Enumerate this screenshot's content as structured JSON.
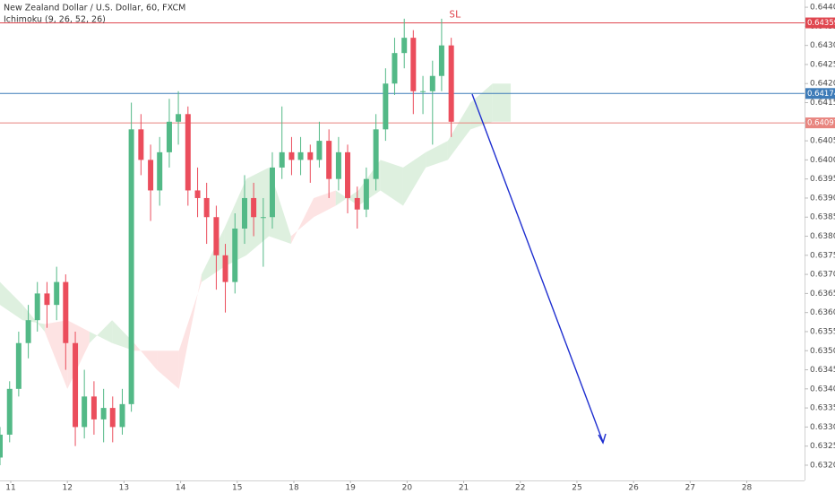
{
  "chart_data": {
    "type": "candlestick",
    "title": "New Zealand Dollar / U.S. Dollar, 60, FXCM",
    "subtitle": "Ichimoku (9, 26, 52, 26)",
    "xlim": [
      -0.19,
      14.02
    ],
    "ylim": [
      0.6316,
      0.64419
    ],
    "grid": false,
    "xticks": [
      {
        "value": 0,
        "label": "11"
      },
      {
        "value": 1,
        "label": "12"
      },
      {
        "value": 2,
        "label": "13"
      },
      {
        "value": 3,
        "label": "14"
      },
      {
        "value": 4,
        "label": "15"
      },
      {
        "value": 5,
        "label": "18"
      },
      {
        "value": 6,
        "label": "19"
      },
      {
        "value": 7,
        "label": "20"
      },
      {
        "value": 8,
        "label": "21"
      },
      {
        "value": 9,
        "label": "22"
      },
      {
        "value": 10,
        "label": "25"
      },
      {
        "value": 11,
        "label": "26"
      },
      {
        "value": 12,
        "label": "27"
      },
      {
        "value": 13,
        "label": "28"
      }
    ],
    "yticks": [
      {
        "value": 0.644,
        "label": "0.64400"
      },
      {
        "value": 0.6435,
        "label": "0.64350"
      },
      {
        "value": 0.643,
        "label": "0.64300"
      },
      {
        "value": 0.6425,
        "label": "0.64250"
      },
      {
        "value": 0.642,
        "label": "0.64200"
      },
      {
        "value": 0.6415,
        "label": "0.64150"
      },
      {
        "value": 0.641,
        "label": "0.64100"
      },
      {
        "value": 0.6405,
        "label": "0.64050"
      },
      {
        "value": 0.64,
        "label": "0.64000"
      },
      {
        "value": 0.6395,
        "label": "0.63950"
      },
      {
        "value": 0.639,
        "label": "0.63900"
      },
      {
        "value": 0.6385,
        "label": "0.63850"
      },
      {
        "value": 0.638,
        "label": "0.63800"
      },
      {
        "value": 0.6375,
        "label": "0.63750"
      },
      {
        "value": 0.637,
        "label": "0.63700"
      },
      {
        "value": 0.6365,
        "label": "0.63650"
      },
      {
        "value": 0.636,
        "label": "0.63600"
      },
      {
        "value": 0.6355,
        "label": "0.63550"
      },
      {
        "value": 0.635,
        "label": "0.63500"
      },
      {
        "value": 0.6345,
        "label": "0.63450"
      },
      {
        "value": 0.634,
        "label": "0.63400"
      },
      {
        "value": 0.6335,
        "label": "0.63350"
      },
      {
        "value": 0.633,
        "label": "0.63300"
      },
      {
        "value": 0.6325,
        "label": "0.63250"
      },
      {
        "value": 0.632,
        "label": "0.63200"
      }
    ],
    "up_color": "#53b987",
    "down_color": "#eb4d5c",
    "x": [
      -0.19,
      -0.02,
      0.14,
      0.31,
      0.47,
      0.64,
      0.81,
      0.97,
      1.14,
      1.3,
      1.47,
      1.64,
      1.8,
      1.97,
      2.13,
      2.3,
      2.47,
      2.63,
      2.8,
      2.96,
      3.13,
      3.3,
      3.46,
      3.63,
      3.79,
      3.96,
      4.13,
      4.29,
      4.46,
      4.62,
      4.79,
      4.96,
      5.12,
      5.29,
      5.45,
      5.62,
      5.79,
      5.95,
      6.12,
      6.28,
      6.45,
      6.62,
      6.78,
      6.95,
      7.11,
      7.28,
      7.45,
      7.61,
      7.78
    ],
    "open": [
      0.6322,
      0.6328,
      0.634,
      0.6352,
      0.6358,
      0.6365,
      0.6362,
      0.6368,
      0.6352,
      0.633,
      0.6338,
      0.6332,
      0.6335,
      0.633,
      0.6336,
      0.6408,
      0.64,
      0.6392,
      0.6402,
      0.641,
      0.6412,
      0.6392,
      0.639,
      0.6385,
      0.6375,
      0.6368,
      0.6382,
      0.639,
      0.6385,
      0.6385,
      0.6398,
      0.6402,
      0.64,
      0.6402,
      0.64,
      0.6405,
      0.6395,
      0.6402,
      0.639,
      0.6387,
      0.6395,
      0.6408,
      0.642,
      0.6428,
      0.6432,
      0.6418,
      0.6418,
      0.6422,
      0.643
    ],
    "high": [
      0.633,
      0.6342,
      0.6355,
      0.6362,
      0.6368,
      0.6368,
      0.6372,
      0.637,
      0.6355,
      0.6345,
      0.6342,
      0.634,
      0.6338,
      0.634,
      0.6415,
      0.6412,
      0.6404,
      0.6406,
      0.6416,
      0.6418,
      0.6414,
      0.6398,
      0.6394,
      0.6388,
      0.6378,
      0.6386,
      0.6396,
      0.6394,
      0.639,
      0.6402,
      0.6414,
      0.6406,
      0.6406,
      0.6404,
      0.641,
      0.6408,
      0.6406,
      0.6404,
      0.6393,
      0.6398,
      0.6412,
      0.6424,
      0.6432,
      0.6437,
      0.6434,
      0.6422,
      0.6426,
      0.6437,
      0.6432
    ],
    "low": [
      0.632,
      0.6326,
      0.6338,
      0.6348,
      0.6355,
      0.6356,
      0.6358,
      0.6345,
      0.6325,
      0.6327,
      0.6328,
      0.6326,
      0.6326,
      0.6328,
      0.6334,
      0.6396,
      0.6384,
      0.6388,
      0.6398,
      0.6404,
      0.6388,
      0.6385,
      0.6378,
      0.6366,
      0.636,
      0.6365,
      0.6378,
      0.638,
      0.6372,
      0.6382,
      0.6395,
      0.6396,
      0.6396,
      0.6394,
      0.6398,
      0.639,
      0.6392,
      0.6386,
      0.6382,
      0.6385,
      0.6392,
      0.6405,
      0.6417,
      0.6424,
      0.6412,
      0.6412,
      0.6404,
      0.6418,
      0.6406
    ],
    "close": [
      0.6328,
      0.634,
      0.6352,
      0.6358,
      0.6365,
      0.6362,
      0.6368,
      0.6352,
      0.633,
      0.6338,
      0.6332,
      0.6335,
      0.633,
      0.6336,
      0.6408,
      0.64,
      0.6392,
      0.6402,
      0.641,
      0.6412,
      0.6392,
      0.639,
      0.6385,
      0.6375,
      0.6368,
      0.6382,
      0.639,
      0.6385,
      0.6385,
      0.6398,
      0.6402,
      0.64,
      0.6402,
      0.64,
      0.6405,
      0.6395,
      0.6402,
      0.639,
      0.6387,
      0.6395,
      0.6408,
      0.642,
      0.6428,
      0.6432,
      0.6418,
      0.6418,
      0.6422,
      0.643,
      0.641
    ],
    "cloud": {
      "x": [
        -0.19,
        0.21,
        0.6,
        1.0,
        1.39,
        1.79,
        2.18,
        2.58,
        2.97,
        3.37,
        3.77,
        4.16,
        4.56,
        4.95,
        5.35,
        5.74,
        6.14,
        6.53,
        6.93,
        7.33,
        7.72,
        8.12,
        8.51,
        8.83
      ],
      "span_a": [
        0.6368,
        0.6362,
        0.6355,
        0.634,
        0.6352,
        0.6358,
        0.6352,
        0.6345,
        0.634,
        0.637,
        0.6382,
        0.6395,
        0.6398,
        0.638,
        0.6385,
        0.6388,
        0.6392,
        0.64,
        0.6398,
        0.6402,
        0.6405,
        0.6415,
        0.642,
        0.642
      ],
      "span_b": [
        0.6362,
        0.6358,
        0.6357,
        0.6358,
        0.6355,
        0.6352,
        0.635,
        0.635,
        0.635,
        0.6368,
        0.6372,
        0.6375,
        0.638,
        0.6378,
        0.639,
        0.6392,
        0.6388,
        0.6392,
        0.6388,
        0.6398,
        0.64,
        0.6408,
        0.641,
        0.641
      ],
      "up_color": "#c8e6c9",
      "down_color": "#fbd0d0"
    },
    "levels": [
      {
        "value": 0.64359,
        "color": "#e0464f",
        "label": "SL"
      },
      {
        "value": 0.64174,
        "color": "#3d7bb8"
      },
      {
        "value": 0.64097,
        "color": "#e8857f"
      }
    ]
  }
}
